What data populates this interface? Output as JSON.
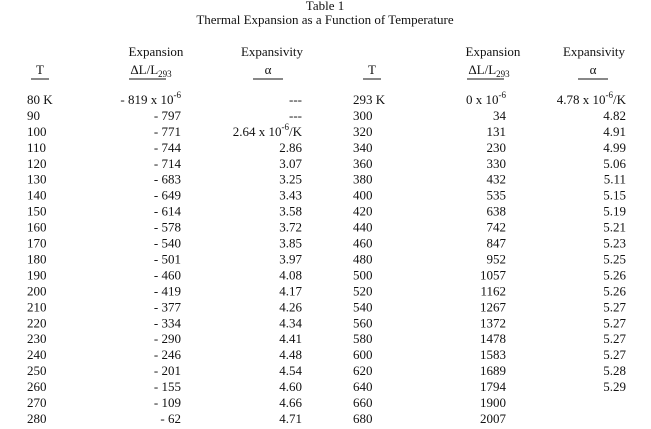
{
  "title": "Table 1",
  "subtitle": "Thermal Expansion as a Function of Temperature",
  "table": {
    "groups": [
      {
        "headers": {
          "t": "T",
          "expansion": "Expansion",
          "expansion_unit": {
            "base": "ΔL/L",
            "sub": "293"
          },
          "expansivity": "Expansivity",
          "expansivity_unit": "α"
        },
        "rows": [
          [
            "80 K",
            {
              "base": "- 819 x 10",
              "sup": "-6"
            },
            "---"
          ],
          [
            "90",
            "- 797",
            "---"
          ],
          [
            "100",
            "- 771",
            {
              "base": "2.64 x 10",
              "sup": "-6",
              "after": "/K"
            }
          ],
          [
            "110",
            "- 744",
            "2.86"
          ],
          [
            "120",
            "- 714",
            "3.07"
          ],
          [
            "130",
            "- 683",
            "3.25"
          ],
          [
            "140",
            "- 649",
            "3.43"
          ],
          [
            "150",
            "- 614",
            "3.58"
          ],
          [
            "160",
            "- 578",
            "3.72"
          ],
          [
            "170",
            "- 540",
            "3.85"
          ],
          [
            "180",
            "- 501",
            "3.97"
          ],
          [
            "190",
            "- 460",
            "4.08"
          ],
          [
            "200",
            "- 419",
            "4.17"
          ],
          [
            "210",
            "- 377",
            "4.26"
          ],
          [
            "220",
            "- 334",
            "4.34"
          ],
          [
            "230",
            "- 290",
            "4.41"
          ],
          [
            "240",
            "- 246",
            "4.48"
          ],
          [
            "250",
            "- 201",
            "4.54"
          ],
          [
            "260",
            "- 155",
            "4.60"
          ],
          [
            "270",
            "- 109",
            "4.66"
          ],
          [
            "280",
            "- 62",
            "4.71"
          ]
        ]
      },
      {
        "headers": {
          "t": "T",
          "expansion": "Expansion",
          "expansion_unit": {
            "base": "ΔL/L",
            "sub": "293"
          },
          "expansivity": "Expansivity",
          "expansivity_unit": "α"
        },
        "rows": [
          [
            "293 K",
            {
              "base": "0 x 10",
              "sup": "-6"
            },
            {
              "base": "4.78 x 10",
              "sup": "-6",
              "after": "/K"
            }
          ],
          [
            "300",
            "34",
            "4.82"
          ],
          [
            "320",
            "131",
            "4.91"
          ],
          [
            "340",
            "230",
            "4.99"
          ],
          [
            "360",
            "330",
            "5.06"
          ],
          [
            "380",
            "432",
            "5.11"
          ],
          [
            "400",
            "535",
            "5.15"
          ],
          [
            "420",
            "638",
            "5.19"
          ],
          [
            "440",
            "742",
            "5.21"
          ],
          [
            "460",
            "847",
            "5.23"
          ],
          [
            "480",
            "952",
            "5.25"
          ],
          [
            "500",
            "1057",
            "5.26"
          ],
          [
            "520",
            "1162",
            "5.26"
          ],
          [
            "540",
            "1267",
            "5.27"
          ],
          [
            "560",
            "1372",
            "5.27"
          ],
          [
            "580",
            "1478",
            "5.27"
          ],
          [
            "600",
            "1583",
            "5.27"
          ],
          [
            "620",
            "1689",
            "5.28"
          ],
          [
            "640",
            "1794",
            "5.29"
          ],
          [
            "660",
            "1900"
          ],
          [
            "680",
            "2007"
          ]
        ]
      }
    ]
  }
}
